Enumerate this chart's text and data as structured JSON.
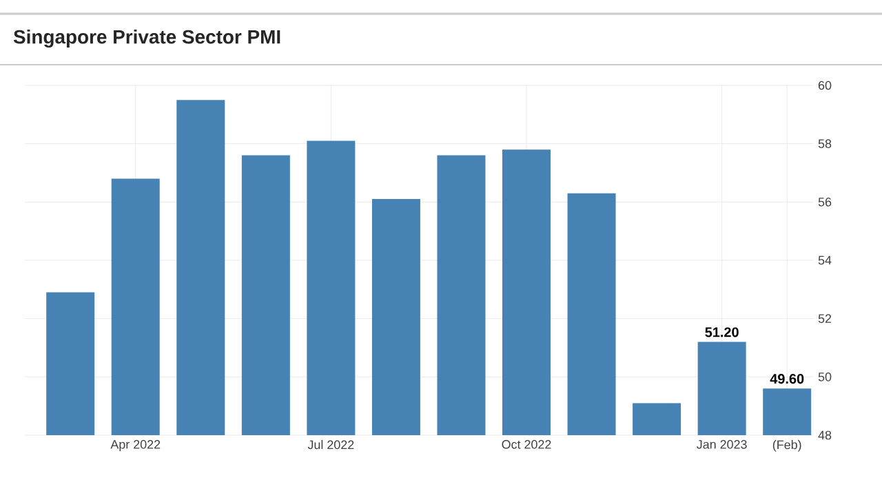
{
  "chart_data": {
    "type": "bar",
    "title": "Singapore Private Sector PMI",
    "categories": [
      null,
      "Apr 2022",
      null,
      null,
      "Jul 2022",
      null,
      null,
      "Oct 2022",
      null,
      null,
      "Jan 2023",
      "(Feb)"
    ],
    "values": [
      52.9,
      56.8,
      59.5,
      57.6,
      58.1,
      56.1,
      57.6,
      57.8,
      56.3,
      49.1,
      51.2,
      49.6
    ],
    "value_labels": [
      null,
      null,
      null,
      null,
      null,
      null,
      null,
      null,
      null,
      null,
      "51.20",
      "49.60"
    ],
    "color": "#4682b4",
    "ylim": [
      48,
      60
    ],
    "yticks": [
      48,
      50,
      52,
      54,
      56,
      58,
      60
    ],
    "grid": true
  }
}
